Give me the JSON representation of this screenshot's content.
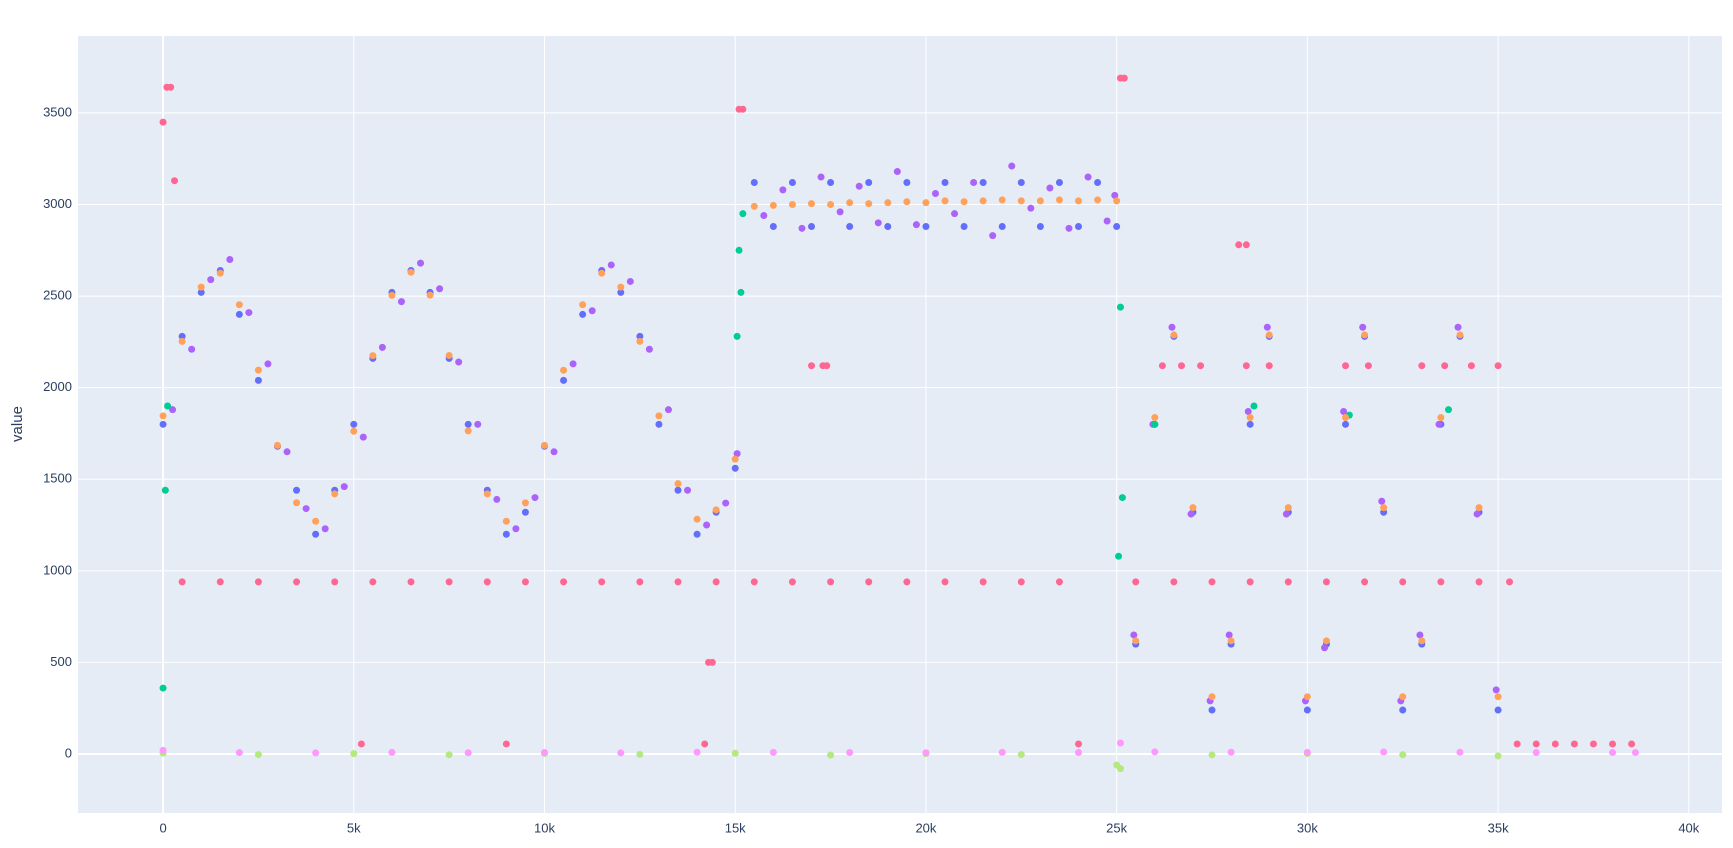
{
  "chart_data": {
    "type": "scatter",
    "ylabel": "value",
    "grid": true,
    "xlim": [
      -2230,
      40870
    ],
    "ylim": [
      -322,
      3920
    ],
    "xticks": [
      0,
      {
        "value": 5000,
        "label": "5k"
      },
      {
        "value": 10000,
        "label": "10k"
      },
      {
        "value": 15000,
        "label": "15k"
      },
      {
        "value": 20000,
        "label": "20k"
      },
      {
        "value": 25000,
        "label": "25k"
      },
      {
        "value": 30000,
        "label": "30k"
      },
      {
        "value": 35000,
        "label": "35k"
      },
      {
        "value": 40000,
        "label": "40k"
      }
    ],
    "yticks": [
      0,
      500,
      1000,
      1500,
      2000,
      2500,
      3000,
      3500
    ],
    "series": [
      {
        "color": "#FF6692",
        "x": [
          0,
          100,
          200,
          300,
          500,
          1500,
          2500,
          3500,
          4500,
          5500,
          6500,
          7500,
          8500,
          9500,
          10500,
          11500,
          12500,
          13500,
          14500,
          15500,
          16500,
          17500,
          18500,
          19500,
          20500,
          21500,
          22500,
          23500,
          15100,
          15200,
          14300,
          14400,
          17300,
          25100,
          25200,
          25500,
          26500,
          27500,
          28500,
          29500,
          30500,
          31500,
          32500,
          33500,
          34500,
          35300,
          26200,
          26700,
          27200,
          28400,
          29000,
          31000,
          31600,
          33000,
          33600,
          34300,
          35000,
          28200,
          28400,
          35500,
          36000,
          36500,
          37000,
          37500,
          38000,
          38500,
          17000,
          17400,
          5200,
          9000,
          14200,
          24000
        ],
        "values": [
          3450,
          3640,
          3640,
          3130,
          940,
          940,
          940,
          940,
          940,
          940,
          940,
          940,
          940,
          940,
          940,
          940,
          940,
          940,
          940,
          940,
          940,
          940,
          940,
          940,
          940,
          940,
          940,
          940,
          3520,
          3520,
          500,
          500,
          2120,
          3690,
          3690,
          940,
          940,
          940,
          940,
          940,
          940,
          940,
          940,
          940,
          940,
          940,
          2120,
          2120,
          2120,
          2120,
          2120,
          2120,
          2120,
          2120,
          2120,
          2120,
          2120,
          2780,
          2780,
          55,
          55,
          55,
          55,
          55,
          55,
          55,
          2120,
          2120,
          55,
          55,
          55,
          55
        ]
      },
      {
        "color": "#636efa",
        "x": [
          0,
          500,
          1000,
          1500,
          2000,
          2500,
          3000,
          3500,
          4000,
          4500,
          5000,
          5500,
          6000,
          6500,
          7000,
          7500,
          8000,
          8500,
          9000,
          9500,
          10000,
          10500,
          11000,
          11500,
          12000,
          12500,
          13000,
          13500,
          14000,
          14500,
          15000,
          15500,
          16000,
          16500,
          17000,
          17500,
          18000,
          18500,
          19000,
          19500,
          20000,
          20500,
          21000,
          21500,
          22000,
          22500,
          23000,
          23500,
          24000,
          24500,
          25000,
          25500,
          26000,
          26500,
          27000,
          27500,
          28000,
          28500,
          29000,
          29500,
          30000,
          30500,
          31000,
          31500,
          32000,
          32500,
          33000,
          33500,
          34000,
          34500,
          35000
        ],
        "values": [
          1800,
          2280,
          2520,
          2640,
          2400,
          2040,
          1680,
          1440,
          1200,
          1440,
          1800,
          2160,
          2520,
          2640,
          2520,
          2160,
          1800,
          1440,
          1200,
          1320,
          1680,
          2040,
          2400,
          2640,
          2520,
          2280,
          1800,
          1440,
          1200,
          1320,
          1560,
          3120,
          2880,
          3120,
          2880,
          3120,
          2880,
          3120,
          2880,
          3120,
          2880,
          3120,
          2880,
          3120,
          2880,
          3120,
          2880,
          3120,
          2880,
          3120,
          2880,
          600,
          1800,
          2280,
          1320,
          240,
          600,
          1800,
          2280,
          1320,
          240,
          600,
          1800,
          2280,
          1320,
          240,
          600,
          1800,
          2280,
          1320,
          240
        ]
      },
      {
        "color": "#ab63fa",
        "x": [
          250,
          750,
          1250,
          1750,
          2250,
          2750,
          3250,
          3750,
          4250,
          4750,
          5250,
          5750,
          6250,
          6750,
          7250,
          7750,
          8250,
          8750,
          9250,
          9750,
          10250,
          10750,
          11250,
          11750,
          12250,
          12750,
          13250,
          13750,
          14250,
          14750,
          15050,
          15750,
          16250,
          16750,
          17250,
          17750,
          18250,
          18750,
          19250,
          19750,
          20250,
          20750,
          21250,
          21750,
          22250,
          22750,
          23250,
          23750,
          24250,
          24750,
          24950,
          25450,
          25950,
          26450,
          26950,
          27450,
          27950,
          28450,
          28950,
          29450,
          29950,
          30450,
          30950,
          31450,
          31950,
          32450,
          32950,
          33450,
          33950,
          34450,
          34950
        ],
        "values": [
          1880,
          2210,
          2590,
          2700,
          2410,
          2130,
          1650,
          1340,
          1230,
          1460,
          1730,
          2220,
          2470,
          2680,
          2540,
          2140,
          1800,
          1390,
          1230,
          1400,
          1650,
          2130,
          2420,
          2670,
          2580,
          2210,
          1880,
          1440,
          1250,
          1370,
          1640,
          2940,
          3080,
          2870,
          3150,
          2960,
          3100,
          2900,
          3180,
          2890,
          3060,
          2950,
          3120,
          2830,
          3210,
          2980,
          3090,
          2870,
          3150,
          2910,
          3050,
          650,
          1800,
          2330,
          1310,
          290,
          650,
          1870,
          2330,
          1310,
          290,
          580,
          1870,
          2330,
          1380,
          290,
          650,
          1800,
          2330,
          1310,
          350
        ]
      },
      {
        "color": "#00cc96",
        "x": [
          0,
          60,
          120,
          15050,
          15100,
          15150,
          15200,
          25050,
          25100,
          25150,
          26000,
          28600,
          31100,
          33700
        ],
        "values": [
          360,
          1440,
          1900,
          2280,
          2750,
          2520,
          2950,
          1080,
          2440,
          1400,
          1800,
          1900,
          1850,
          1880
        ]
      },
      {
        "color": "#FFA15A",
        "x": [
          0,
          500,
          1000,
          1500,
          2000,
          2500,
          3000,
          3500,
          4000,
          4500,
          5000,
          5500,
          6000,
          6500,
          7000,
          7500,
          8000,
          8500,
          9000,
          9500,
          10000,
          10500,
          11000,
          11500,
          12000,
          12500,
          13000,
          13500,
          14000,
          14500,
          15000,
          15500,
          16000,
          16500,
          17000,
          17500,
          18000,
          18500,
          19000,
          19500,
          20000,
          20500,
          21000,
          21500,
          22000,
          22500,
          23000,
          23500,
          24000,
          24500,
          25000,
          25500,
          26000,
          26500,
          27000,
          27500,
          28000,
          28500,
          29000,
          29500,
          30000,
          30500,
          31000,
          31500,
          32000,
          32500,
          33000,
          33500,
          34000,
          34500,
          35000
        ],
        "values": [
          1846,
          2253,
          2549,
          2625,
          2453,
          2096,
          1685,
          1372,
          1271,
          1420,
          1762,
          2175,
          2504,
          2630,
          2505,
          2176,
          1764,
          1420,
          1271,
          1371,
          1685,
          2095,
          2453,
          2625,
          2549,
          2253,
          1846,
          1476,
          1282,
          1333,
          1610,
          2990,
          2995,
          3000,
          3005,
          3000,
          3010,
          3005,
          3010,
          3015,
          3010,
          3020,
          3015,
          3020,
          3025,
          3020,
          3020,
          3025,
          3020,
          3025,
          3020,
          618,
          1837,
          2288,
          1345,
          313,
          618,
          1837,
          2288,
          1345,
          313,
          618,
          1837,
          2288,
          1345,
          313,
          618,
          1837,
          2288,
          1345,
          313
        ]
      },
      {
        "color": "#B6E880",
        "x": [
          0,
          2500,
          5000,
          7500,
          10000,
          12500,
          15000,
          17500,
          20000,
          22500,
          25000,
          25100,
          27500,
          30000,
          32500,
          35000
        ],
        "values": [
          5,
          -3,
          2,
          -4,
          3,
          -2,
          4,
          -6,
          2,
          -3,
          -60,
          -80,
          -5,
          3,
          -4,
          -10
        ]
      },
      {
        "color": "#FF97FF",
        "x": [
          0,
          2000,
          4000,
          6000,
          8000,
          10000,
          12000,
          14000,
          16000,
          18000,
          20000,
          22000,
          24000,
          25100,
          26000,
          28000,
          30000,
          32000,
          34000,
          36000,
          38000,
          38600
        ],
        "values": [
          20,
          8,
          6,
          9,
          7,
          8,
          6,
          10,
          9,
          8,
          7,
          9,
          8,
          60,
          12,
          10,
          9,
          11,
          10,
          8,
          8,
          8
        ]
      }
    ]
  }
}
